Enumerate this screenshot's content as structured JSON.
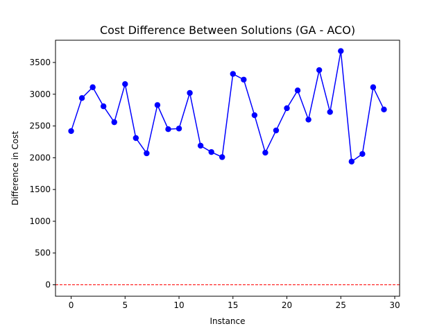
{
  "chart_data": {
    "type": "line",
    "title": "Cost Difference Between Solutions (GA - ACO)",
    "xlabel": "Instance",
    "ylabel": "Difference in Cost",
    "xlim": [
      -1.45,
      30.45
    ],
    "ylim": [
      -180,
      3850
    ],
    "x_ticks": [
      0,
      5,
      10,
      15,
      20,
      25,
      30
    ],
    "y_ticks": [
      0,
      500,
      1000,
      1500,
      2000,
      2500,
      3000,
      3500
    ],
    "grid": false,
    "series": [
      {
        "color": "#0000ff",
        "marker": "circle",
        "x": [
          0,
          1,
          2,
          3,
          4,
          5,
          6,
          7,
          8,
          9,
          10,
          11,
          12,
          13,
          14,
          15,
          16,
          17,
          18,
          19,
          20,
          21,
          22,
          23,
          24,
          25,
          26,
          27,
          28,
          29
        ],
        "values": [
          2420,
          2940,
          3110,
          2810,
          2560,
          3160,
          2310,
          2070,
          2830,
          2450,
          2460,
          3020,
          2190,
          2090,
          2010,
          3320,
          3230,
          2670,
          2080,
          2430,
          2780,
          3060,
          2600,
          3380,
          2720,
          3680,
          1940,
          2060,
          3110,
          2760
        ]
      }
    ],
    "reference_line": {
      "y": 0,
      "color": "#ff0000",
      "style": "dashed"
    }
  }
}
